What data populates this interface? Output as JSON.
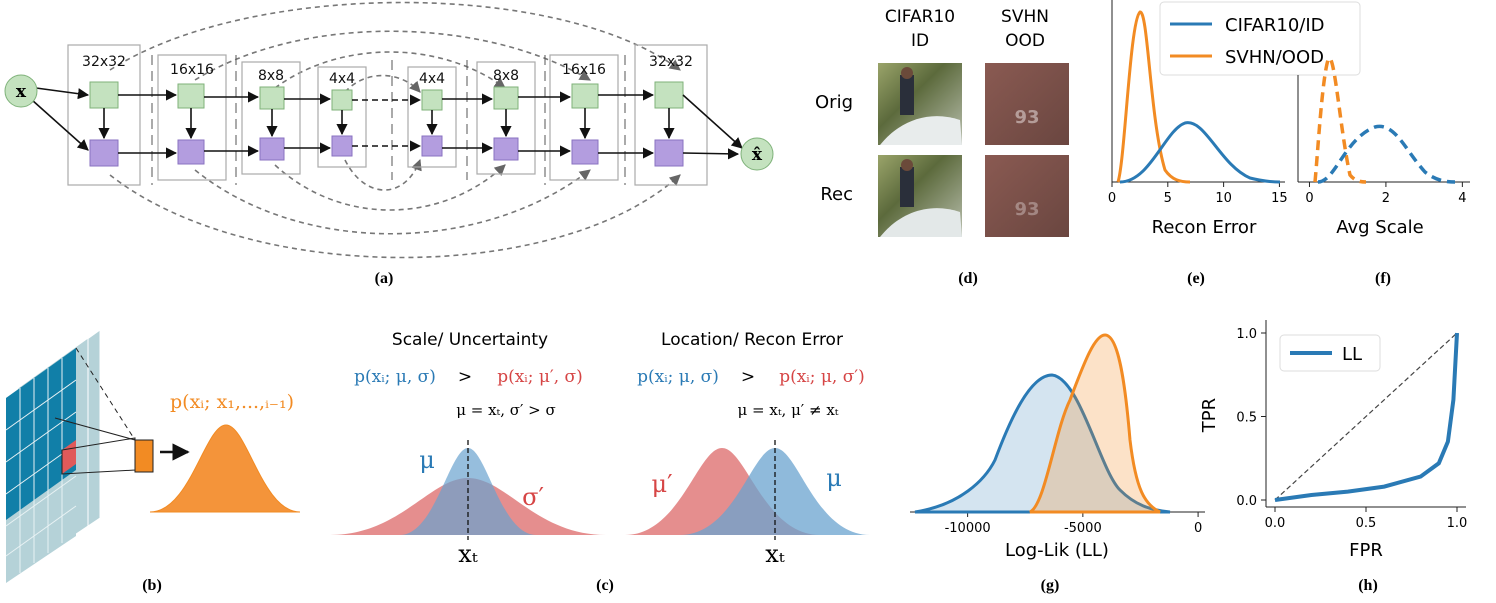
{
  "colors": {
    "green": "#c4e2bf",
    "green_stroke": "#7fb27a",
    "purple": "#b39ddf",
    "purple_stroke": "#8a72c0",
    "blue": "#2a7ab5",
    "orange": "#f28b23",
    "red": "#d64545",
    "teal": "#1f8fb0"
  },
  "panel_a": {
    "caption": "(a)",
    "input": "x",
    "output": "x̂",
    "blocks": [
      "32x32",
      "16x16",
      "8x8",
      "4x4",
      "4x4",
      "8x8",
      "16x16",
      "32x32"
    ]
  },
  "panel_b": {
    "caption": "(b)",
    "formula": "p(xᵢ; x₁,...,ᵢ₋₁)"
  },
  "panel_c": {
    "caption": "(c)",
    "left_title": "Scale/ Uncertainty",
    "left_lhs": "p(xᵢ; μ, σ)",
    "left_rhs": "p(xᵢ; μ′, σ)",
    "left_cond": "μ = xₜ, σ′ > σ",
    "left_mu": "μ",
    "left_sigma": "σ′",
    "left_xt": "xₜ",
    "right_title": "Location/ Recon Error",
    "right_lhs": "p(xᵢ; μ, σ)",
    "right_rhs": "p(xᵢ; μ, σ′)",
    "right_cond": "μ = xₜ, μ′ ≠ xₜ",
    "right_mu_prime": "μ′",
    "right_mu": "μ",
    "right_xt": "xₜ",
    "gt": ">"
  },
  "panel_d": {
    "caption": "(d)",
    "col1_title_1": "CIFAR10",
    "col1_title_2": "ID",
    "col2_title_1": "SVHN",
    "col2_title_2": "OOD",
    "row1": "Orig",
    "row2": "Rec",
    "digits": "93"
  },
  "panel_e": {
    "caption": "(e)",
    "xlabel": "Recon Error",
    "xticks": [
      "0",
      "5",
      "10",
      "15"
    ],
    "legend": [
      "CIFAR10/ID",
      "SVHN/OOD"
    ]
  },
  "panel_f": {
    "caption": "(f)",
    "xlabel": "Avg Scale",
    "xticks": [
      "0",
      "2",
      "4"
    ]
  },
  "panel_g": {
    "caption": "(g)",
    "xlabel": "Log-Lik (LL)",
    "xticks": [
      "-10000",
      "-5000",
      "0"
    ]
  },
  "panel_h": {
    "caption": "(h)",
    "xlabel": "FPR",
    "ylabel": "TPR",
    "xticks": [
      "0.0",
      "0.5",
      "1.0"
    ],
    "yticks": [
      "0.0",
      "0.5",
      "1.0"
    ],
    "legend": "LL"
  },
  "chart_data": [
    {
      "type": "area",
      "xlabel": "Recon Error",
      "xlim": [
        0,
        15.5
      ],
      "series": [
        {
          "name": "CIFAR10/ID",
          "peak_x": 6.3,
          "peak_density": 0.45
        },
        {
          "name": "SVHN/OOD",
          "peak_x": 1.4,
          "peak_density": 1.55
        }
      ]
    },
    {
      "type": "area",
      "xlabel": "Avg Scale",
      "xlim": [
        0,
        4.2
      ],
      "series": [
        {
          "name": "CIFAR10/ID",
          "peak_x": 1.8,
          "line": "dashed"
        },
        {
          "name": "SVHN/OOD",
          "peak_x": 0.5,
          "line": "dashed"
        }
      ]
    },
    {
      "type": "area",
      "xlabel": "Log-Lik (LL)",
      "xlim": [
        -12500,
        300
      ],
      "series": [
        {
          "name": "CIFAR10/ID",
          "peak_x": -6800
        },
        {
          "name": "SVHN/OOD",
          "peak_x": -4300
        }
      ]
    },
    {
      "type": "line",
      "xlabel": "FPR",
      "ylabel": "TPR",
      "xlim": [
        0,
        1
      ],
      "ylim": [
        0,
        1
      ],
      "series": [
        {
          "name": "LL",
          "x": [
            0,
            0.2,
            0.4,
            0.6,
            0.8,
            0.9,
            0.95,
            0.98,
            1.0
          ],
          "y": [
            0,
            0.03,
            0.05,
            0.08,
            0.14,
            0.22,
            0.35,
            0.6,
            1.0
          ]
        }
      ]
    }
  ]
}
